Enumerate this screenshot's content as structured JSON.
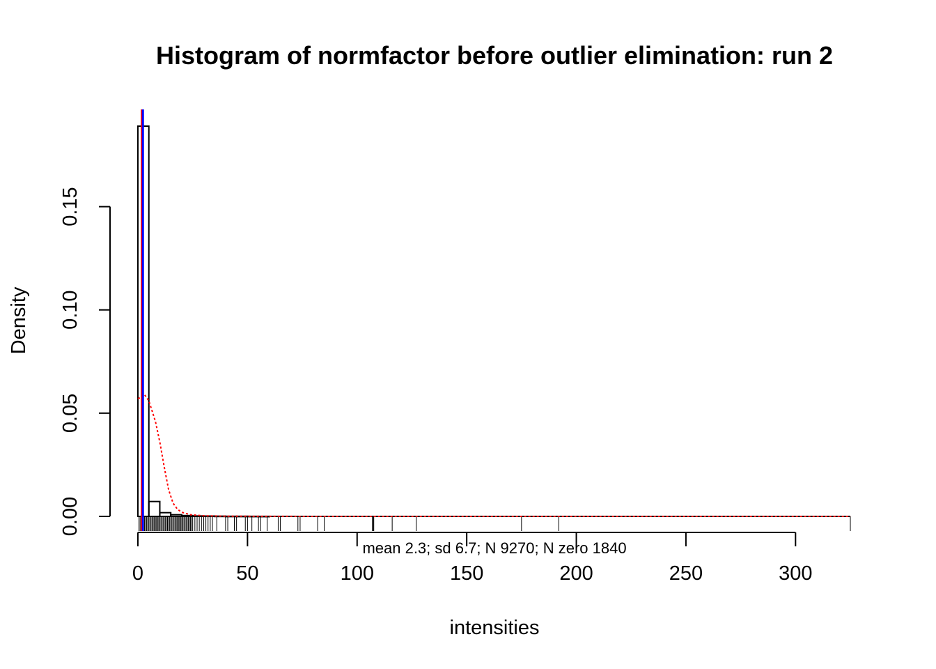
{
  "chart_data": {
    "type": "histogram",
    "title": "Histogram of normfactor before outlier elimination: run  2",
    "xlabel": "intensities",
    "ylabel": "Density",
    "subtitle": "mean 2.3; sd 6.7; N 9270; N zero 1840",
    "xlim": [
      0,
      325
    ],
    "ylim": [
      0,
      0.19
    ],
    "x_ticks": [
      0,
      50,
      100,
      150,
      200,
      250,
      300
    ],
    "x_tick_labels": [
      "0",
      "50",
      "100",
      "150",
      "200",
      "250",
      "300"
    ],
    "y_ticks": [
      0,
      0.05,
      0.1,
      0.15
    ],
    "y_tick_labels": [
      "0.00",
      "0.05",
      "0.10",
      "0.15"
    ],
    "bins": [
      {
        "x0": 0,
        "x1": 5,
        "density": 0.189
      },
      {
        "x0": 5,
        "x1": 10,
        "density": 0.0072
      },
      {
        "x0": 10,
        "x1": 15,
        "density": 0.0018
      },
      {
        "x0": 15,
        "x1": 20,
        "density": 0.0008
      },
      {
        "x0": 20,
        "x1": 25,
        "density": 0.0004
      },
      {
        "x0": 25,
        "x1": 30,
        "density": 0.0002
      },
      {
        "x0": 30,
        "x1": 35,
        "density": 0.00015
      },
      {
        "x0": 35,
        "x1": 40,
        "density": 0.0001
      },
      {
        "x0": 40,
        "x1": 45,
        "density": 5e-05
      },
      {
        "x0": 45,
        "x1": 50,
        "density": 5e-05
      },
      {
        "x0": 50,
        "x1": 55,
        "density": 3e-05
      },
      {
        "x0": 55,
        "x1": 60,
        "density": 2e-05
      }
    ],
    "density_curve": {
      "color": "#ff0000",
      "style": "dotted",
      "points": [
        [
          0,
          0.057
        ],
        [
          2,
          0.058
        ],
        [
          3,
          0.059
        ],
        [
          5,
          0.056
        ],
        [
          8,
          0.046
        ],
        [
          10,
          0.036
        ],
        [
          12,
          0.024
        ],
        [
          14,
          0.013
        ],
        [
          16,
          0.0065
        ],
        [
          18,
          0.0035
        ],
        [
          20,
          0.002
        ],
        [
          24,
          0.0008
        ],
        [
          30,
          0.0003
        ],
        [
          40,
          0.0001
        ],
        [
          60,
          3e-05
        ],
        [
          100,
          0.0
        ],
        [
          325,
          0.0
        ]
      ]
    },
    "vlines": [
      {
        "x": 1.8,
        "color": "#ff0000",
        "name": "median-line"
      },
      {
        "x": 2.3,
        "color": "#0000ff",
        "name": "mean-line"
      }
    ],
    "rug_sparse": [
      0.5,
      1,
      1.5,
      2,
      2.5,
      3,
      3.5,
      4,
      4.5,
      5,
      5.5,
      6,
      6.5,
      7,
      7.5,
      8,
      8.5,
      9,
      9.5,
      10,
      10.5,
      11,
      11.5,
      12,
      12.5,
      13,
      13.5,
      14,
      14.5,
      15,
      15.5,
      16,
      16.5,
      17,
      17.5,
      18,
      18.5,
      19,
      19.5,
      20,
      20.5,
      21,
      21.5,
      22,
      22.5,
      23,
      23.5,
      24,
      24.5,
      25,
      26,
      27,
      28,
      29,
      30,
      31,
      32,
      33,
      34,
      36,
      40,
      41,
      44,
      45,
      49,
      50,
      52,
      55,
      56,
      59,
      64,
      65,
      73,
      74,
      82,
      85,
      107,
      107.3,
      107.6,
      116,
      127,
      175,
      192,
      325
    ],
    "colors": {
      "bar_stroke": "#000000",
      "median": "#ff0000",
      "mean": "#0000ff",
      "density": "#ff0000"
    }
  }
}
